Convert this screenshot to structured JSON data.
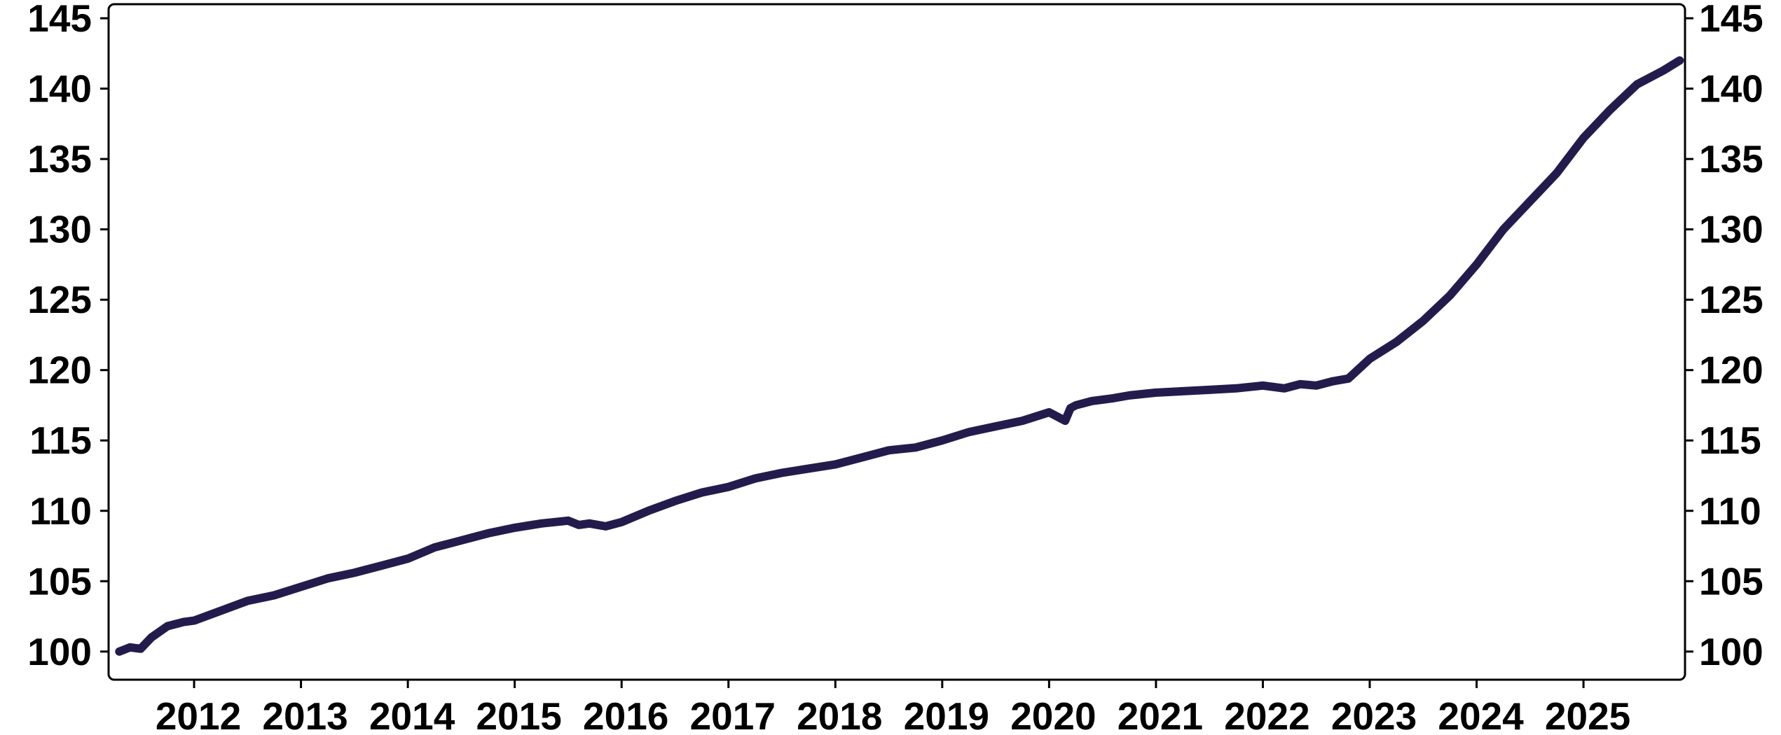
{
  "chart_data": {
    "type": "line",
    "title": "",
    "xlabel": "",
    "ylabel": "",
    "line_color": "#241b4d",
    "frame_color": "#000000",
    "grid": false,
    "y_axis_sides": [
      "left",
      "right"
    ],
    "xlim": [
      2011.2,
      2025.95
    ],
    "ylim": [
      98,
      146
    ],
    "x_ticks": [
      2012,
      2013,
      2014,
      2015,
      2016,
      2017,
      2018,
      2019,
      2020,
      2021,
      2022,
      2023,
      2024,
      2025
    ],
    "x_tick_labels": [
      "2012",
      "2013",
      "2014",
      "2015",
      "2016",
      "2017",
      "2018",
      "2019",
      "2020",
      "2021",
      "2022",
      "2023",
      "2024",
      "2025"
    ],
    "y_ticks": [
      100,
      105,
      110,
      115,
      120,
      125,
      130,
      135,
      140,
      145
    ],
    "y_tick_labels": [
      "100",
      "105",
      "110",
      "115",
      "120",
      "125",
      "130",
      "135",
      "140",
      "145"
    ],
    "series": [
      {
        "x": [
          2011.3,
          2011.4,
          2011.5,
          2011.6,
          2011.75,
          2011.9,
          2012.0,
          2012.25,
          2012.5,
          2012.75,
          2013.0,
          2013.25,
          2013.5,
          2013.75,
          2014.0,
          2014.25,
          2014.5,
          2014.75,
          2015.0,
          2015.25,
          2015.5,
          2015.6,
          2015.7,
          2015.85,
          2016.0,
          2016.25,
          2016.5,
          2016.75,
          2017.0,
          2017.25,
          2017.5,
          2017.75,
          2018.0,
          2018.25,
          2018.5,
          2018.75,
          2019.0,
          2019.25,
          2019.5,
          2019.75,
          2020.0,
          2020.15,
          2020.2,
          2020.25,
          2020.4,
          2020.6,
          2020.75,
          2021.0,
          2021.25,
          2021.5,
          2021.75,
          2022.0,
          2022.2,
          2022.35,
          2022.5,
          2022.65,
          2022.8,
          2023.0,
          2023.25,
          2023.5,
          2023.75,
          2024.0,
          2024.25,
          2024.5,
          2024.75,
          2025.0,
          2025.25,
          2025.5,
          2025.75,
          2025.9
        ],
        "y": [
          100.0,
          100.3,
          100.2,
          101.0,
          101.8,
          102.1,
          102.2,
          102.9,
          103.6,
          104.0,
          104.6,
          105.2,
          105.6,
          106.1,
          106.6,
          107.4,
          107.9,
          108.4,
          108.8,
          109.1,
          109.3,
          109.0,
          109.1,
          108.9,
          109.2,
          110.0,
          110.7,
          111.3,
          111.7,
          112.3,
          112.7,
          113.0,
          113.3,
          113.8,
          114.3,
          114.5,
          115.0,
          115.6,
          116.0,
          116.4,
          117.0,
          116.4,
          117.3,
          117.5,
          117.8,
          118.0,
          118.2,
          118.4,
          118.5,
          118.6,
          118.7,
          118.9,
          118.7,
          119.0,
          118.9,
          119.2,
          119.4,
          120.8,
          122.0,
          123.5,
          125.3,
          127.5,
          130.0,
          132.0,
          134.0,
          136.5,
          138.5,
          140.3,
          141.3,
          142.0
        ]
      }
    ]
  }
}
